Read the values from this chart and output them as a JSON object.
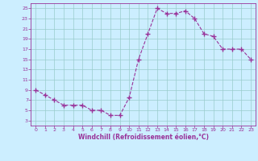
{
  "x": [
    0,
    1,
    2,
    3,
    4,
    5,
    6,
    7,
    8,
    9,
    10,
    11,
    12,
    13,
    14,
    15,
    16,
    17,
    18,
    19,
    20,
    21,
    22,
    23
  ],
  "y": [
    9,
    8,
    7,
    6,
    6,
    6,
    5,
    5,
    4,
    4,
    7.5,
    15,
    20,
    25,
    24,
    24,
    24.5,
    23,
    20,
    19.5,
    17,
    17,
    17,
    15
  ],
  "line_color": "#993399",
  "marker_color": "#993399",
  "bg_color": "#cceeff",
  "grid_color": "#99cccc",
  "xlabel": "Windchill (Refroidissement éolien,°C)",
  "xlabel_color": "#993399",
  "xlim": [
    -0.5,
    23.5
  ],
  "ylim": [
    2,
    26
  ],
  "yticks": [
    3,
    5,
    7,
    9,
    11,
    13,
    15,
    17,
    19,
    21,
    23,
    25
  ],
  "xticks": [
    0,
    1,
    2,
    3,
    4,
    5,
    6,
    7,
    8,
    9,
    10,
    11,
    12,
    13,
    14,
    15,
    16,
    17,
    18,
    19,
    20,
    21,
    22,
    23
  ]
}
